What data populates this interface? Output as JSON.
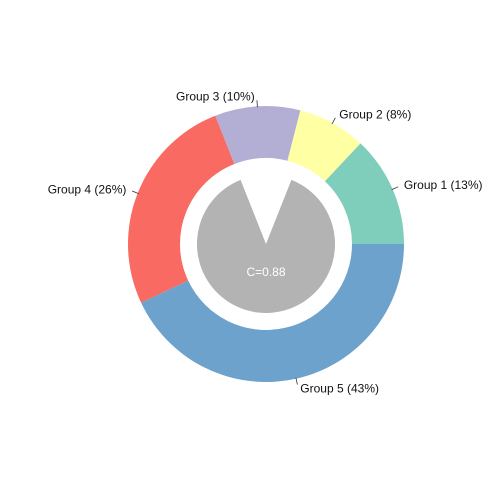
{
  "chart_data": {
    "type": "pie",
    "variant": "donut",
    "title": "",
    "series": [
      {
        "label": "Group 1 (13%)",
        "value": 13,
        "color": "#7fcdbb"
      },
      {
        "label": "Group 2 (8%)",
        "value": 8,
        "color": "#ffffa3"
      },
      {
        "label": "Group 3 (10%)",
        "value": 10,
        "color": "#b3aed4"
      },
      {
        "label": "Group 4 (26%)",
        "value": 26,
        "color": "#f96a62"
      },
      {
        "label": "Group 5 (43%)",
        "value": 43,
        "color": "#6ca2cb"
      }
    ],
    "start_direction": "right (3 o'clock)",
    "direction": "counter-clockwise",
    "center": {
      "label": "C=0.88",
      "value": 0.88,
      "color": "#b3b3b3",
      "label_color": "#ffffff"
    }
  }
}
